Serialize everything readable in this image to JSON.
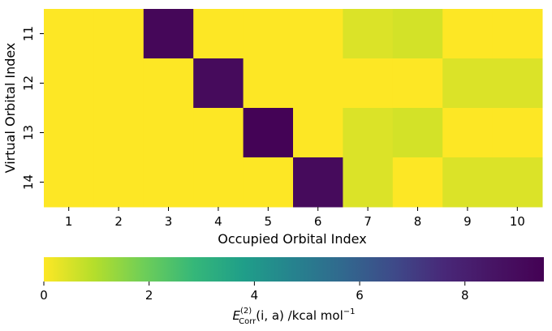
{
  "chart_data": {
    "type": "heatmap",
    "title": "",
    "xlabel": "Occupied Orbital Index",
    "ylabel": "Virtual Orbital Index",
    "x_categories": [
      "1",
      "2",
      "3",
      "4",
      "5",
      "6",
      "7",
      "8",
      "9",
      "10"
    ],
    "y_categories": [
      "11",
      "12",
      "13",
      "14"
    ],
    "values": [
      [
        0.0,
        0.0,
        9.2,
        0.0,
        0.0,
        0.0,
        0.45,
        0.55,
        0.0,
        0.0
      ],
      [
        0.0,
        0.0,
        0.0,
        9.0,
        0.0,
        0.0,
        0.0,
        0.0,
        0.45,
        0.45
      ],
      [
        0.0,
        0.0,
        0.0,
        0.0,
        9.4,
        0.0,
        0.45,
        0.55,
        0.0,
        0.0
      ],
      [
        0.0,
        0.0,
        0.0,
        0.0,
        0.0,
        9.0,
        0.45,
        0.0,
        0.45,
        0.45
      ]
    ],
    "colormap": "viridis_r",
    "colorbar": {
      "label_main": "E",
      "label_sup": "(2)",
      "label_sub": "Corr",
      "label_rest": "(i, a) /kcal mol",
      "label_exp": "−1",
      "range": [
        0,
        9.5
      ],
      "ticks": [
        0,
        2,
        4,
        6,
        8
      ]
    },
    "grid": false
  }
}
